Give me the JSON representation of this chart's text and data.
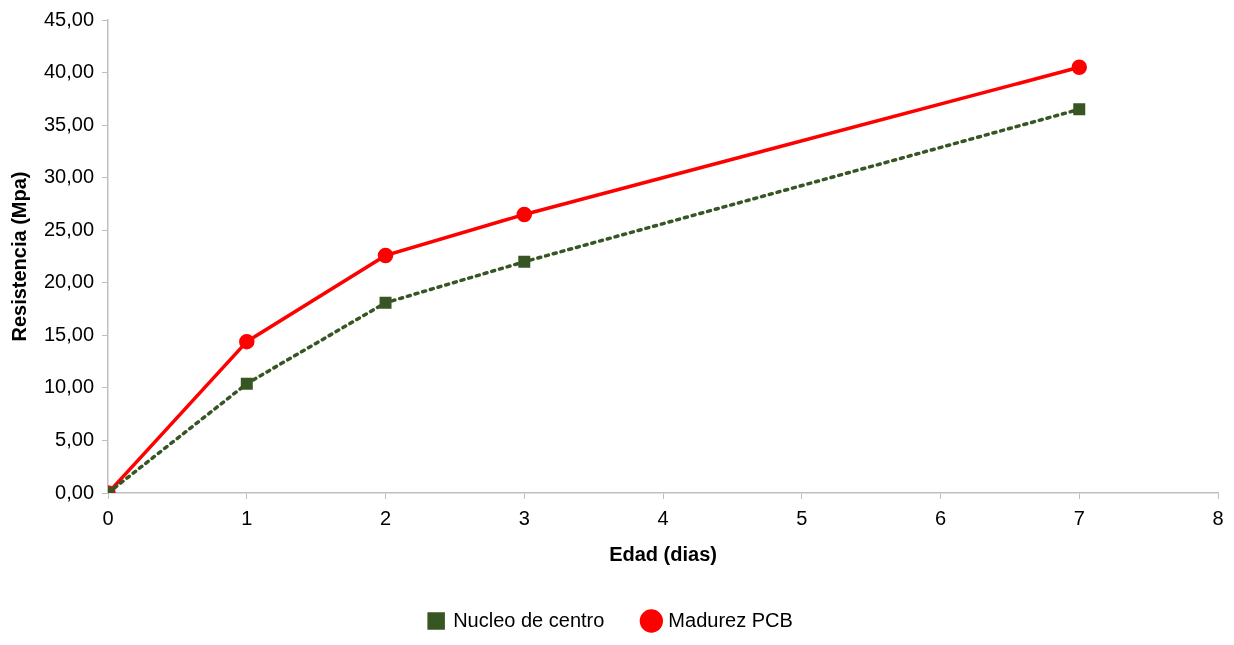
{
  "chart_data": {
    "type": "line",
    "xlabel": "Edad (dias)",
    "ylabel": "Resistencia (Mpa)",
    "x": [
      0,
      1,
      2,
      3,
      7
    ],
    "series": [
      {
        "name": "Nucleo de centro",
        "color": "#375623",
        "marker": "square",
        "line_style": "dotted",
        "values": [
          0,
          10.4,
          18.1,
          22.0,
          36.5
        ]
      },
      {
        "name": "Madurez PCB",
        "color": "#ff0000",
        "marker": "circle",
        "line_style": "solid",
        "values": [
          0,
          14.4,
          22.6,
          26.5,
          40.5
        ]
      }
    ],
    "xlim": [
      0,
      8
    ],
    "xticks": [
      0,
      1,
      2,
      3,
      4,
      5,
      6,
      7,
      8
    ],
    "ylim": [
      0,
      45
    ],
    "yticks": [
      {
        "value": 0,
        "label": "0,00"
      },
      {
        "value": 5,
        "label": "5,00"
      },
      {
        "value": 10,
        "label": "10,00"
      },
      {
        "value": 15,
        "label": "15,00"
      },
      {
        "value": 20,
        "label": "20,00"
      },
      {
        "value": 25,
        "label": "25,00"
      },
      {
        "value": 30,
        "label": "30,00"
      },
      {
        "value": 35,
        "label": "35,00"
      },
      {
        "value": 40,
        "label": "40,00"
      },
      {
        "value": 45,
        "label": "45,00"
      }
    ],
    "grid": false,
    "legend": "bottom"
  }
}
